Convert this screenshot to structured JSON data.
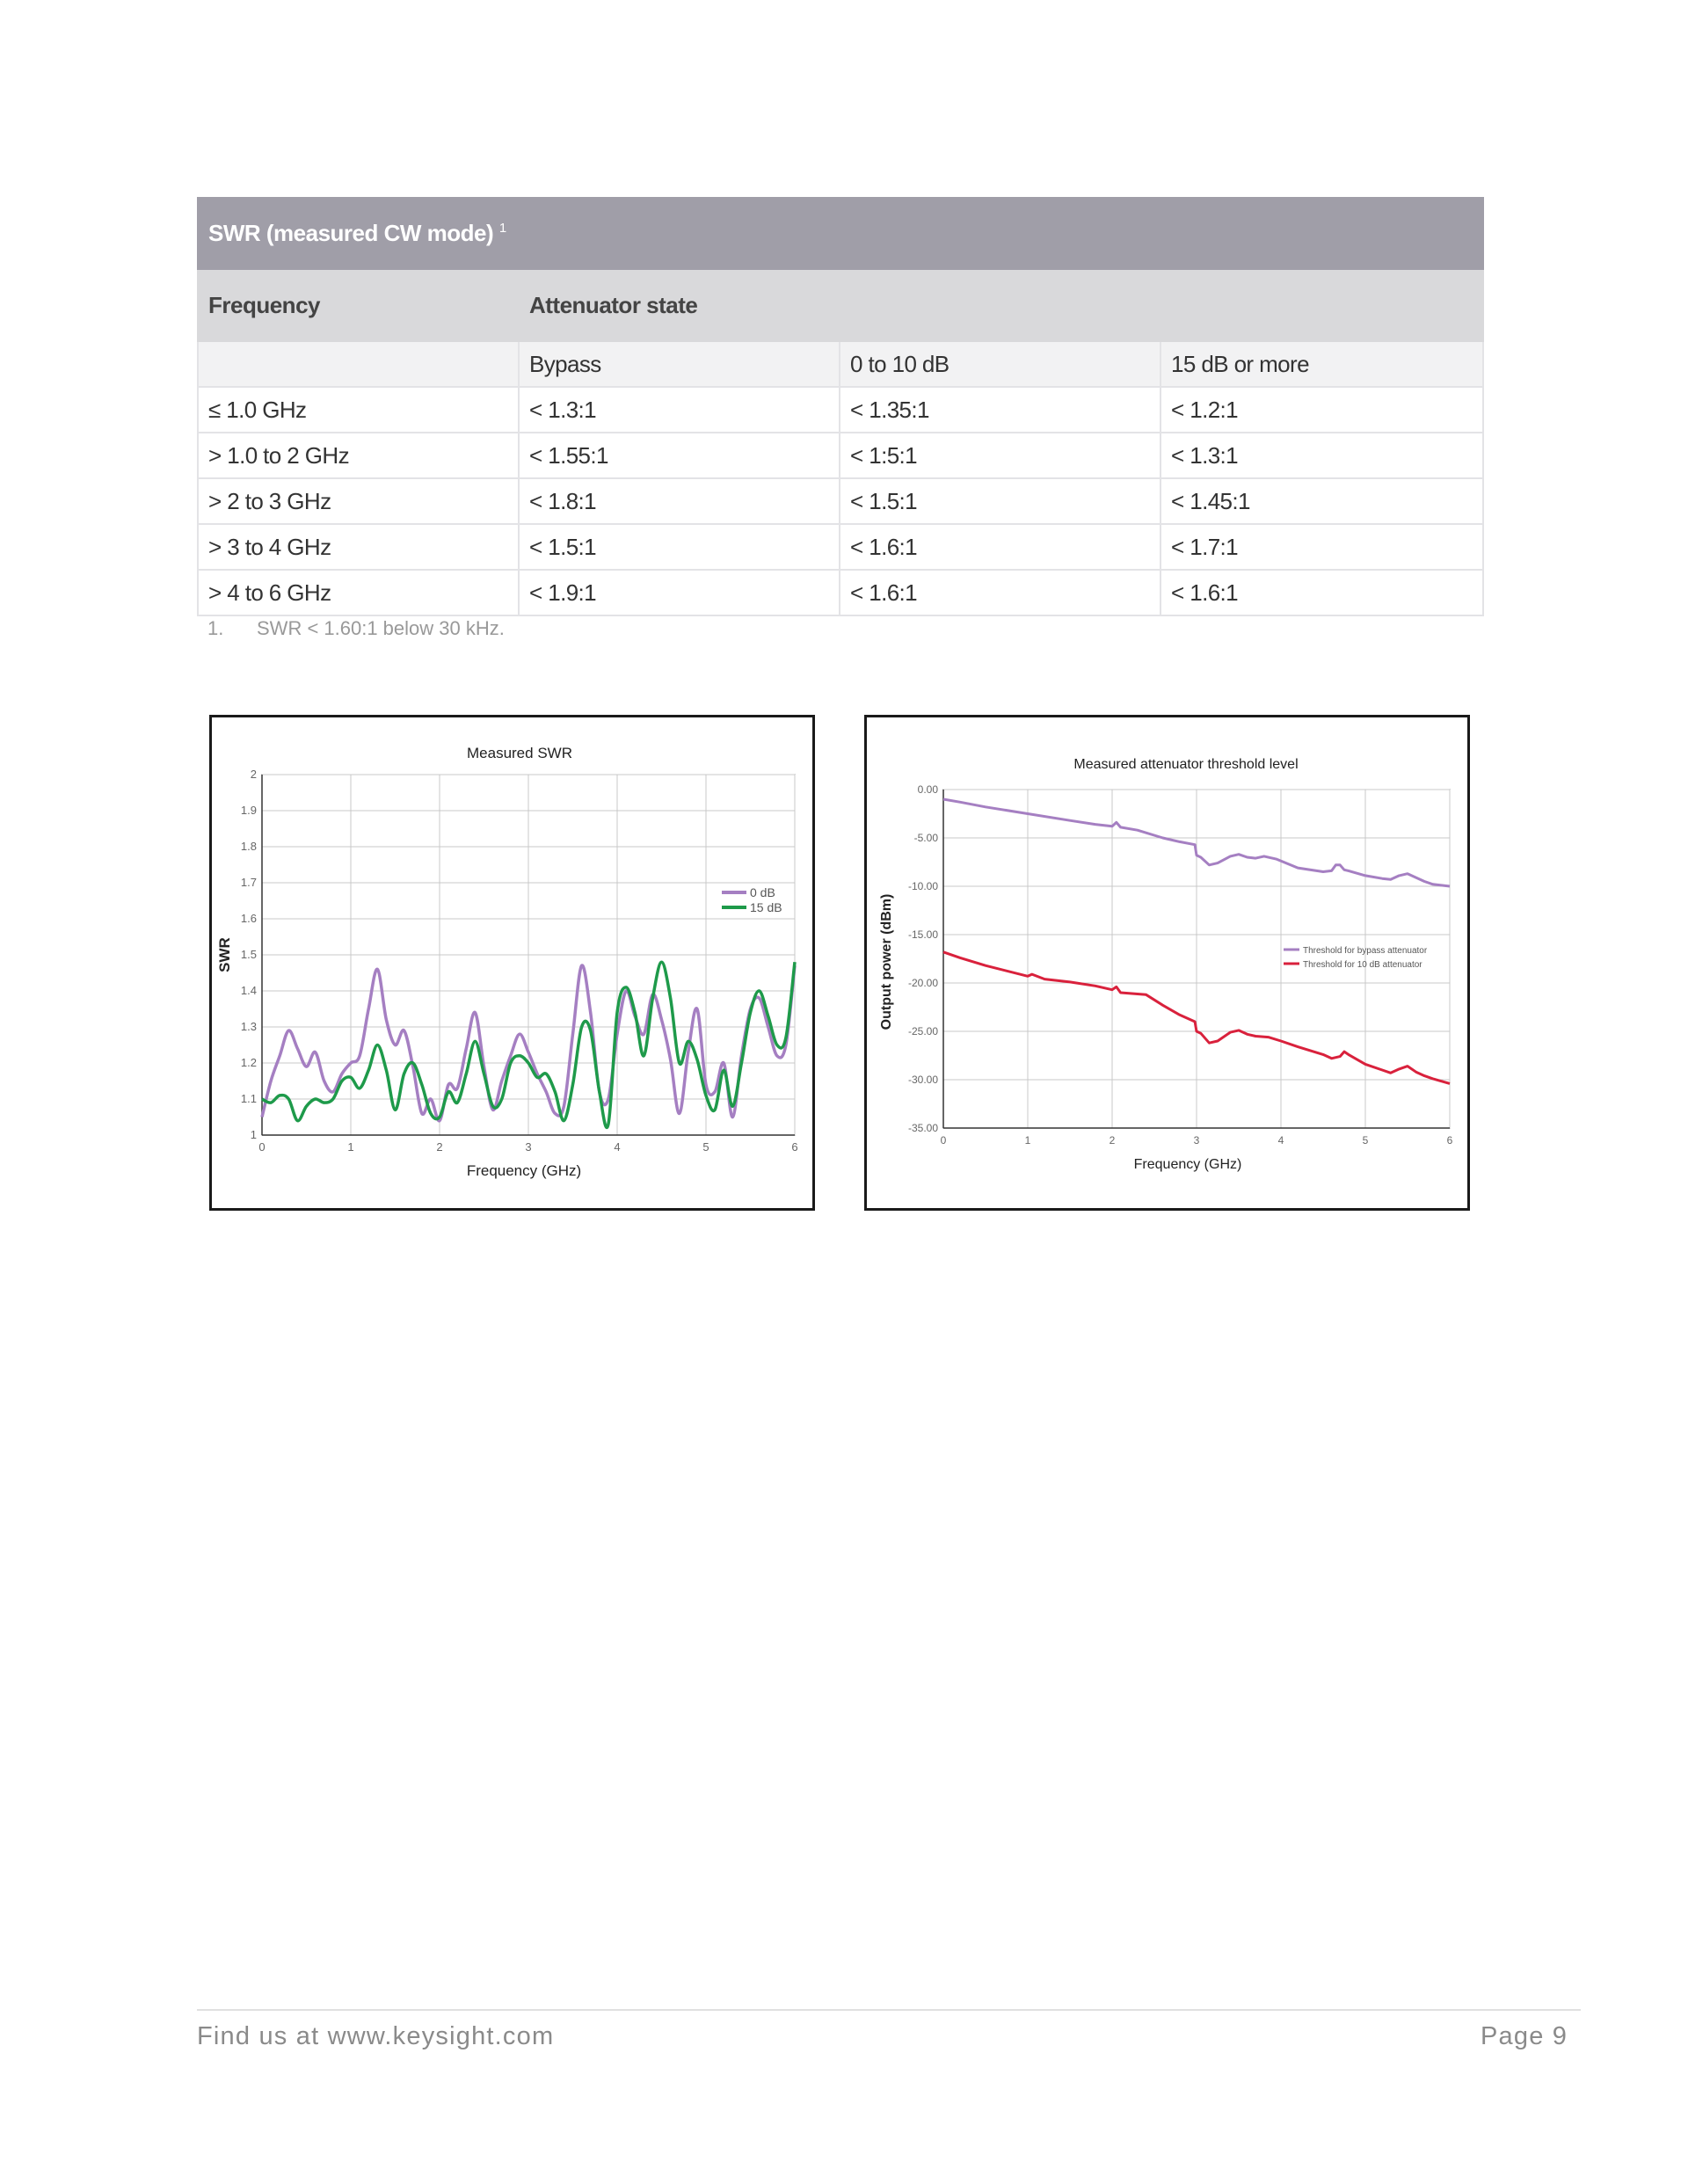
{
  "table": {
    "title": "SWR (measured CW mode)",
    "title_footnote_mark": "1",
    "col_frequency": "Frequency",
    "col_attenuator_state": "Attenuator state",
    "sub_headers": [
      "Bypass",
      "0 to 10 dB",
      "15 dB or more"
    ],
    "rows": [
      [
        "≤ 1.0 GHz",
        "< 1.3:1",
        "< 1.35:1",
        "< 1.2:1"
      ],
      [
        "> 1.0 to 2 GHz",
        "< 1.55:1",
        "< 1:5:1",
        "< 1.3:1"
      ],
      [
        "> 2 to 3 GHz",
        "< 1.8:1",
        "< 1.5:1",
        "< 1.45:1"
      ],
      [
        "> 3 to 4 GHz",
        "< 1.5:1",
        "< 1.6:1",
        "< 1.7:1"
      ],
      [
        "> 4 to 6 GHz",
        "< 1.9:1",
        "< 1.6:1",
        "< 1.6:1"
      ]
    ]
  },
  "footnote": {
    "number": "1.",
    "text": "SWR < 1.60:1 below 30 kHz."
  },
  "colors": {
    "purple": "#a57fc2",
    "green": "#1e9a4a",
    "red": "#d9213c"
  },
  "chart_data": [
    {
      "type": "line",
      "title": "Measured SWR",
      "xlabel": "Frequency (GHz)",
      "ylabel": "SWR",
      "xlim": [
        0,
        6
      ],
      "ylim": [
        1,
        2
      ],
      "x_ticks": [
        0,
        1,
        2,
        3,
        4,
        5,
        6
      ],
      "y_ticks": [
        1,
        1.1,
        1.2,
        1.3,
        1.4,
        1.5,
        1.6,
        1.7,
        1.8,
        1.9,
        2
      ],
      "y_tick_labels": [
        "1",
        "1.1",
        "1.2",
        "1.3",
        "1.4",
        "1.5",
        "1.6",
        "1.7",
        "1.8",
        "1.9",
        "2"
      ],
      "grid": true,
      "legend_position": "right",
      "series": [
        {
          "name": "0 dB",
          "color": "#a57fc2",
          "x": [
            0,
            0.1,
            0.2,
            0.3,
            0.4,
            0.5,
            0.6,
            0.7,
            0.8,
            0.9,
            1.0,
            1.1,
            1.2,
            1.3,
            1.4,
            1.5,
            1.6,
            1.7,
            1.8,
            1.9,
            2.0,
            2.1,
            2.2,
            2.3,
            2.4,
            2.5,
            2.6,
            2.7,
            2.8,
            2.9,
            3.0,
            3.1,
            3.2,
            3.3,
            3.4,
            3.5,
            3.6,
            3.7,
            3.8,
            3.9,
            4.0,
            4.1,
            4.2,
            4.3,
            4.4,
            4.5,
            4.6,
            4.7,
            4.8,
            4.9,
            5.0,
            5.1,
            5.2,
            5.3,
            5.4,
            5.5,
            5.6,
            5.7,
            5.8,
            5.9,
            6.0
          ],
          "y": [
            1.05,
            1.15,
            1.22,
            1.29,
            1.24,
            1.19,
            1.23,
            1.15,
            1.12,
            1.17,
            1.2,
            1.22,
            1.35,
            1.46,
            1.32,
            1.25,
            1.29,
            1.19,
            1.06,
            1.1,
            1.04,
            1.14,
            1.13,
            1.24,
            1.34,
            1.19,
            1.07,
            1.15,
            1.22,
            1.28,
            1.23,
            1.17,
            1.12,
            1.06,
            1.08,
            1.28,
            1.47,
            1.34,
            1.12,
            1.1,
            1.28,
            1.4,
            1.33,
            1.28,
            1.39,
            1.32,
            1.21,
            1.06,
            1.23,
            1.35,
            1.14,
            1.12,
            1.2,
            1.05,
            1.22,
            1.35,
            1.38,
            1.3,
            1.22,
            1.25,
            1.47
          ]
        },
        {
          "name": "15 dB",
          "color": "#1e9a4a",
          "x": [
            0,
            0.1,
            0.2,
            0.3,
            0.4,
            0.5,
            0.6,
            0.7,
            0.8,
            0.9,
            1.0,
            1.1,
            1.2,
            1.3,
            1.4,
            1.5,
            1.6,
            1.7,
            1.8,
            1.9,
            2.0,
            2.1,
            2.2,
            2.3,
            2.4,
            2.5,
            2.6,
            2.7,
            2.8,
            2.9,
            3.0,
            3.1,
            3.2,
            3.3,
            3.4,
            3.5,
            3.6,
            3.7,
            3.8,
            3.9,
            4.0,
            4.1,
            4.2,
            4.3,
            4.4,
            4.5,
            4.6,
            4.7,
            4.8,
            4.9,
            5.0,
            5.1,
            5.2,
            5.3,
            5.4,
            5.5,
            5.6,
            5.7,
            5.8,
            5.9,
            6.0
          ],
          "y": [
            1.1,
            1.09,
            1.11,
            1.1,
            1.04,
            1.08,
            1.1,
            1.09,
            1.1,
            1.15,
            1.16,
            1.13,
            1.18,
            1.25,
            1.18,
            1.07,
            1.17,
            1.2,
            1.14,
            1.06,
            1.05,
            1.12,
            1.09,
            1.17,
            1.26,
            1.17,
            1.08,
            1.1,
            1.2,
            1.22,
            1.2,
            1.16,
            1.17,
            1.12,
            1.04,
            1.14,
            1.3,
            1.29,
            1.12,
            1.03,
            1.34,
            1.41,
            1.34,
            1.22,
            1.38,
            1.48,
            1.38,
            1.2,
            1.26,
            1.21,
            1.11,
            1.07,
            1.18,
            1.08,
            1.2,
            1.34,
            1.4,
            1.33,
            1.25,
            1.27,
            1.48
          ]
        }
      ]
    },
    {
      "type": "line",
      "title": "Measured attenuator threshold level",
      "xlabel": "Frequency  (GHz)",
      "ylabel": "Output power (dBm)",
      "xlim": [
        0,
        6
      ],
      "ylim": [
        -35,
        0
      ],
      "x_ticks": [
        0,
        1,
        2,
        3,
        4,
        5,
        6
      ],
      "y_ticks": [
        0,
        -5,
        -10,
        -15,
        -20,
        -25,
        -30,
        -35
      ],
      "y_tick_labels": [
        "0.00",
        "-5.00",
        "-10.00",
        "-15.00",
        "-20.00",
        "-25.00",
        "-30.00",
        "-35.00"
      ],
      "grid": true,
      "legend_position": "right",
      "series": [
        {
          "name": "Threshold for bypass attenuator",
          "color": "#a57fc2",
          "x": [
            0,
            0.2,
            0.5,
            1.0,
            1.5,
            1.8,
            2.0,
            2.05,
            2.1,
            2.3,
            2.6,
            2.8,
            2.98,
            3.0,
            3.05,
            3.15,
            3.25,
            3.4,
            3.5,
            3.6,
            3.7,
            3.8,
            3.95,
            4.2,
            4.5,
            4.6,
            4.65,
            4.7,
            4.75,
            4.8,
            5.0,
            5.2,
            5.3,
            5.4,
            5.5,
            5.6,
            5.7,
            5.8,
            6.0
          ],
          "y": [
            -1.0,
            -1.3,
            -1.8,
            -2.5,
            -3.2,
            -3.6,
            -3.8,
            -3.4,
            -3.9,
            -4.2,
            -5.0,
            -5.4,
            -5.7,
            -6.8,
            -7.0,
            -7.8,
            -7.6,
            -6.9,
            -6.7,
            -7.0,
            -7.1,
            -6.9,
            -7.2,
            -8.1,
            -8.5,
            -8.4,
            -7.8,
            -7.8,
            -8.3,
            -8.4,
            -8.9,
            -9.2,
            -9.3,
            -8.9,
            -8.7,
            -9.1,
            -9.5,
            -9.8,
            -10.0
          ]
        },
        {
          "name": "Threshold for 10 dB attenuator",
          "color": "#d9213c",
          "x": [
            0,
            0.2,
            0.5,
            1.0,
            1.05,
            1.2,
            1.5,
            1.8,
            2.0,
            2.05,
            2.1,
            2.4,
            2.6,
            2.8,
            2.98,
            3.0,
            3.05,
            3.15,
            3.25,
            3.4,
            3.5,
            3.6,
            3.7,
            3.85,
            4.0,
            4.2,
            4.5,
            4.6,
            4.7,
            4.75,
            4.8,
            5.0,
            5.2,
            5.3,
            5.4,
            5.5,
            5.6,
            5.7,
            5.8,
            6.0
          ],
          "y": [
            -16.8,
            -17.4,
            -18.2,
            -19.3,
            -19.1,
            -19.6,
            -19.9,
            -20.3,
            -20.7,
            -20.4,
            -21.0,
            -21.2,
            -22.3,
            -23.3,
            -24.0,
            -25.0,
            -25.2,
            -26.2,
            -26.0,
            -25.1,
            -24.9,
            -25.3,
            -25.5,
            -25.6,
            -26.0,
            -26.6,
            -27.4,
            -27.8,
            -27.6,
            -27.1,
            -27.4,
            -28.4,
            -29.0,
            -29.3,
            -28.9,
            -28.6,
            -29.2,
            -29.6,
            -29.9,
            -30.4
          ]
        }
      ]
    }
  ],
  "footer": {
    "link": "Find us at www.keysight.com",
    "page": "Page 9"
  }
}
